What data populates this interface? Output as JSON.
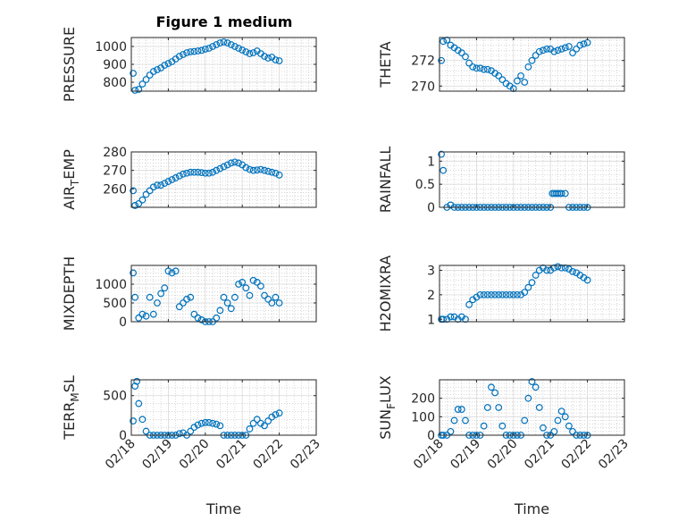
{
  "figure": {
    "title": "Figure 1 medium"
  },
  "colors": {
    "marker": "#0072BD",
    "axis": "#262626",
    "grid": "#BDBDBD"
  },
  "chart_data": [
    {
      "id": "pressure",
      "type": "scatter",
      "ylabel": "PRESSURE",
      "xlim": [
        0,
        5
      ],
      "ylim": [
        750,
        1050
      ],
      "yticks": [
        800,
        900,
        1000
      ],
      "ytick_labels": [
        "800",
        "900",
        "1000"
      ],
      "x": [
        0.05,
        0.1,
        0.2,
        0.3,
        0.4,
        0.5,
        0.6,
        0.7,
        0.8,
        0.9,
        1.0,
        1.1,
        1.2,
        1.3,
        1.4,
        1.5,
        1.6,
        1.7,
        1.8,
        1.9,
        2.0,
        2.1,
        2.2,
        2.3,
        2.4,
        2.5,
        2.6,
        2.7,
        2.8,
        2.9,
        3.0,
        3.1,
        3.2,
        3.3,
        3.4,
        3.5,
        3.6,
        3.7,
        3.8,
        3.9,
        4.0
      ],
      "y": [
        850,
        755,
        760,
        790,
        815,
        840,
        860,
        870,
        880,
        895,
        905,
        915,
        930,
        945,
        955,
        965,
        970,
        972,
        975,
        978,
        985,
        990,
        1000,
        1010,
        1020,
        1025,
        1020,
        1010,
        1000,
        990,
        980,
        970,
        960,
        965,
        975,
        960,
        945,
        935,
        940,
        925,
        920
      ]
    },
    {
      "id": "theta",
      "type": "scatter",
      "ylabel": "THETA",
      "xlim": [
        0,
        5
      ],
      "ylim": [
        269.6,
        273.8
      ],
      "yticks": [
        270,
        272
      ],
      "ytick_labels": [
        "270",
        "272"
      ],
      "x": [
        0.05,
        0.1,
        0.2,
        0.3,
        0.4,
        0.5,
        0.6,
        0.7,
        0.8,
        0.9,
        1.0,
        1.1,
        1.2,
        1.3,
        1.4,
        1.5,
        1.6,
        1.7,
        1.8,
        1.9,
        2.0,
        2.1,
        2.2,
        2.3,
        2.4,
        2.5,
        2.6,
        2.7,
        2.8,
        2.9,
        3.0,
        3.1,
        3.2,
        3.3,
        3.4,
        3.5,
        3.6,
        3.7,
        3.8,
        3.9,
        4.0
      ],
      "y": [
        272.0,
        273.5,
        273.6,
        273.2,
        273.0,
        272.8,
        272.6,
        272.3,
        271.8,
        271.5,
        271.4,
        271.4,
        271.3,
        271.3,
        271.2,
        271.0,
        270.8,
        270.5,
        270.2,
        270.0,
        269.8,
        270.4,
        270.8,
        270.3,
        271.5,
        272.0,
        272.4,
        272.7,
        272.8,
        272.9,
        272.9,
        272.7,
        272.8,
        272.9,
        273.0,
        273.1,
        272.6,
        272.9,
        273.2,
        273.3,
        273.4
      ]
    },
    {
      "id": "air-temp",
      "type": "scatter",
      "ylabel": "AIR_TEMP",
      "xlim": [
        0,
        5
      ],
      "ylim": [
        250,
        280
      ],
      "yticks": [
        260,
        270,
        280
      ],
      "ytick_labels": [
        "260",
        "270",
        "280"
      ],
      "x": [
        0.05,
        0.1,
        0.2,
        0.3,
        0.4,
        0.5,
        0.6,
        0.7,
        0.8,
        0.9,
        1.0,
        1.1,
        1.2,
        1.3,
        1.4,
        1.5,
        1.6,
        1.7,
        1.8,
        1.9,
        2.0,
        2.1,
        2.2,
        2.3,
        2.4,
        2.5,
        2.6,
        2.7,
        2.8,
        2.9,
        3.0,
        3.1,
        3.2,
        3.3,
        3.4,
        3.5,
        3.6,
        3.7,
        3.8,
        3.9,
        4.0
      ],
      "y": [
        259,
        251,
        252,
        254,
        257,
        259,
        261,
        262,
        262,
        263,
        264,
        265,
        266,
        267,
        268,
        268.5,
        269,
        269,
        269,
        268.8,
        268.5,
        268.5,
        269,
        270,
        271,
        272,
        273,
        274,
        274.5,
        274,
        273,
        271.5,
        270.5,
        270,
        270.2,
        270.5,
        270,
        269.5,
        269,
        268.5,
        267.5
      ]
    },
    {
      "id": "rainfall",
      "type": "scatter",
      "ylabel": "RAINFALL",
      "xlim": [
        0,
        5
      ],
      "ylim": [
        0,
        1.2
      ],
      "yticks": [
        0,
        0.5,
        1
      ],
      "ytick_labels": [
        "0",
        "0.5",
        "1"
      ],
      "x": [
        0.05,
        0.1,
        0.2,
        0.3,
        0.4,
        0.5,
        0.6,
        0.7,
        0.8,
        0.9,
        1.0,
        1.1,
        1.2,
        1.3,
        1.4,
        1.5,
        1.6,
        1.7,
        1.8,
        1.9,
        2.0,
        2.1,
        2.2,
        2.3,
        2.4,
        2.5,
        2.6,
        2.7,
        2.8,
        2.9,
        3.0,
        3.05,
        3.1,
        3.15,
        3.2,
        3.25,
        3.3,
        3.4,
        3.5,
        3.6,
        3.7,
        3.8,
        3.9,
        4.0
      ],
      "y": [
        1.15,
        0.8,
        0,
        0.05,
        0,
        0,
        0,
        0,
        0,
        0,
        0,
        0,
        0,
        0,
        0,
        0,
        0,
        0,
        0,
        0,
        0,
        0,
        0,
        0,
        0,
        0,
        0,
        0,
        0,
        0,
        0,
        0.3,
        0.3,
        0.3,
        0.3,
        0.3,
        0.3,
        0.3,
        0,
        0,
        0,
        0,
        0,
        0
      ]
    },
    {
      "id": "mixdepth",
      "type": "scatter",
      "ylabel": "MIXDEPTH",
      "xlim": [
        0,
        5
      ],
      "ylim": [
        0,
        1500
      ],
      "yticks": [
        0,
        500,
        1000
      ],
      "ytick_labels": [
        "0",
        "500",
        "1000"
      ],
      "x": [
        0.05,
        0.1,
        0.2,
        0.3,
        0.4,
        0.5,
        0.6,
        0.7,
        0.8,
        0.9,
        1.0,
        1.1,
        1.2,
        1.3,
        1.4,
        1.5,
        1.6,
        1.7,
        1.8,
        1.9,
        2.0,
        2.1,
        2.2,
        2.3,
        2.4,
        2.5,
        2.6,
        2.7,
        2.8,
        2.9,
        3.0,
        3.1,
        3.2,
        3.3,
        3.4,
        3.5,
        3.6,
        3.7,
        3.8,
        3.9,
        4.0
      ],
      "y": [
        1300,
        650,
        100,
        200,
        150,
        650,
        200,
        500,
        750,
        900,
        1350,
        1300,
        1350,
        400,
        500,
        600,
        650,
        200,
        100,
        50,
        0,
        0,
        0,
        100,
        300,
        650,
        500,
        350,
        650,
        1000,
        1050,
        900,
        700,
        1100,
        1050,
        950,
        700,
        600,
        500,
        650,
        500
      ]
    },
    {
      "id": "h2omixra",
      "type": "scatter",
      "ylabel": "H2OMIXRA",
      "xlim": [
        0,
        5
      ],
      "ylim": [
        0.9,
        3.2
      ],
      "yticks": [
        1,
        2,
        3
      ],
      "ytick_labels": [
        "1",
        "2",
        "3"
      ],
      "x": [
        0.05,
        0.1,
        0.2,
        0.3,
        0.4,
        0.5,
        0.6,
        0.7,
        0.8,
        0.9,
        1.0,
        1.1,
        1.2,
        1.3,
        1.4,
        1.5,
        1.6,
        1.7,
        1.8,
        1.9,
        2.0,
        2.1,
        2.2,
        2.3,
        2.4,
        2.5,
        2.6,
        2.7,
        2.8,
        2.9,
        3.0,
        3.1,
        3.2,
        3.3,
        3.4,
        3.5,
        3.6,
        3.7,
        3.8,
        3.9,
        4.0
      ],
      "y": [
        1.0,
        1.0,
        1.0,
        1.1,
        1.1,
        1.0,
        1.1,
        1.0,
        1.6,
        1.8,
        1.9,
        2.0,
        2.0,
        2.0,
        2.0,
        2.0,
        2.0,
        2.0,
        2.0,
        2.0,
        2.0,
        2.0,
        2.0,
        2.1,
        2.3,
        2.5,
        2.8,
        3.0,
        3.1,
        3.0,
        3.0,
        3.1,
        3.15,
        3.1,
        3.1,
        3.05,
        2.95,
        2.9,
        2.8,
        2.7,
        2.6
      ]
    },
    {
      "id": "terr-msl",
      "type": "scatter",
      "ylabel": "TERR_MSL",
      "xlim": [
        0,
        5
      ],
      "ylim": [
        0,
        700
      ],
      "yticks": [
        0,
        500
      ],
      "ytick_labels": [
        "0",
        "500"
      ],
      "x": [
        0.05,
        0.1,
        0.15,
        0.2,
        0.3,
        0.4,
        0.5,
        0.6,
        0.7,
        0.8,
        0.9,
        1.0,
        1.1,
        1.2,
        1.3,
        1.4,
        1.5,
        1.6,
        1.7,
        1.8,
        1.9,
        2.0,
        2.1,
        2.2,
        2.3,
        2.4,
        2.5,
        2.6,
        2.7,
        2.8,
        2.9,
        3.0,
        3.1,
        3.2,
        3.3,
        3.4,
        3.5,
        3.6,
        3.7,
        3.8,
        3.9,
        4.0
      ],
      "y": [
        180,
        620,
        680,
        400,
        200,
        50,
        0,
        0,
        0,
        0,
        0,
        0,
        0,
        0,
        20,
        30,
        0,
        50,
        100,
        130,
        150,
        160,
        160,
        150,
        140,
        120,
        0,
        0,
        0,
        0,
        0,
        0,
        0,
        80,
        150,
        200,
        150,
        120,
        180,
        230,
        260,
        280
      ]
    },
    {
      "id": "sun-flux",
      "type": "scatter",
      "ylabel": "SUN_FLUX",
      "xlim": [
        0,
        5
      ],
      "ylim": [
        0,
        300
      ],
      "yticks": [
        0,
        100,
        200
      ],
      "ytick_labels": [
        "0",
        "100",
        "200"
      ],
      "x": [
        0.05,
        0.1,
        0.2,
        0.3,
        0.4,
        0.5,
        0.6,
        0.7,
        0.8,
        0.9,
        1.0,
        1.1,
        1.2,
        1.3,
        1.4,
        1.5,
        1.6,
        1.7,
        1.8,
        1.9,
        2.0,
        2.1,
        2.2,
        2.3,
        2.4,
        2.5,
        2.6,
        2.7,
        2.8,
        2.9,
        3.0,
        3.1,
        3.2,
        3.3,
        3.4,
        3.5,
        3.6,
        3.7,
        3.8,
        3.9,
        4.0
      ],
      "y": [
        0,
        0,
        0,
        20,
        80,
        140,
        140,
        80,
        0,
        0,
        0,
        0,
        50,
        150,
        260,
        230,
        150,
        50,
        0,
        0,
        0,
        0,
        0,
        80,
        200,
        290,
        260,
        150,
        40,
        0,
        0,
        20,
        80,
        130,
        100,
        50,
        20,
        0,
        0,
        0,
        0
      ]
    }
  ],
  "xaxis": {
    "ticks": [
      0,
      1,
      2,
      3,
      4,
      5
    ],
    "tick_labels": [
      "02/18",
      "02/19",
      "02/20",
      "02/21",
      "02/22",
      "02/23"
    ],
    "label": "Time"
  }
}
